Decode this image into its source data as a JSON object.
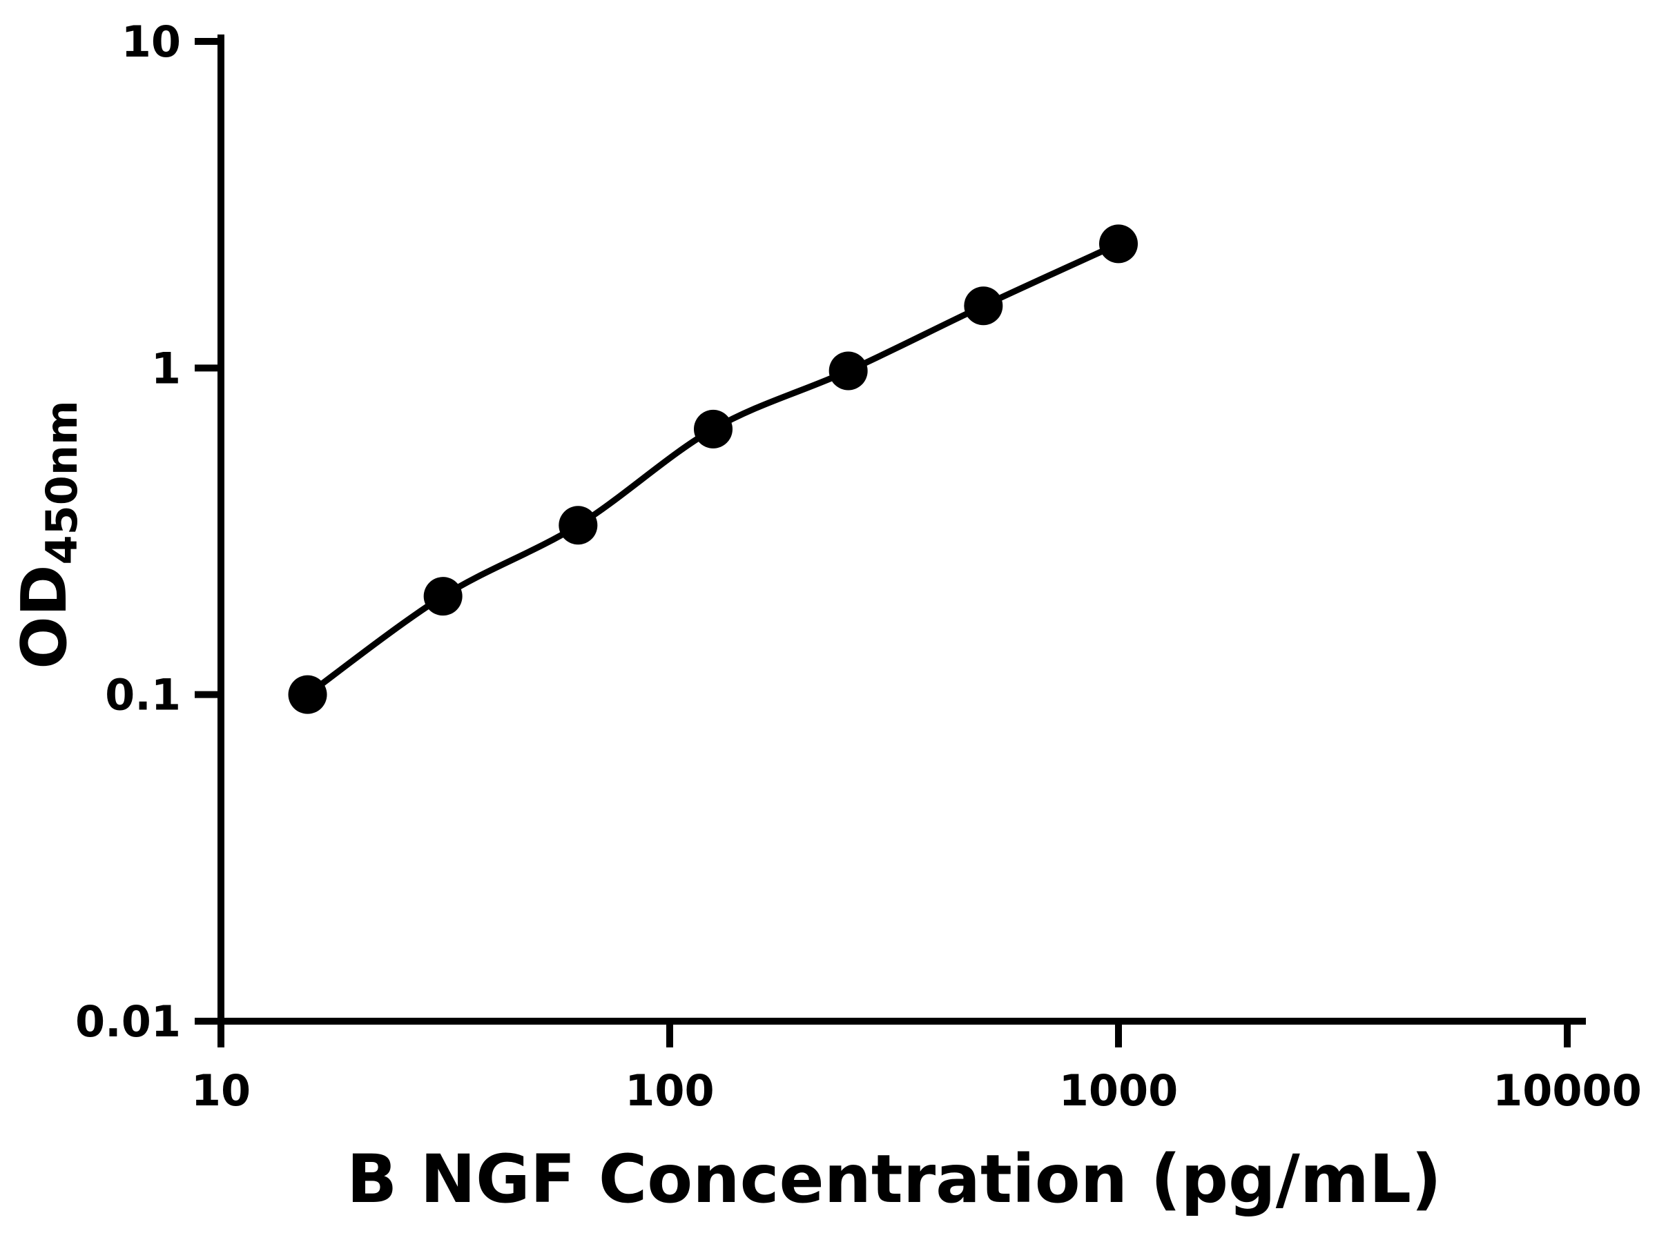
{
  "chart_data": {
    "type": "scatter",
    "title": "",
    "xlabel": "B NGF Concentration (pg/mL)",
    "ylabel": "OD",
    "ylabel_sub": "450nm",
    "x_scale": "log",
    "y_scale": "log",
    "xlim": [
      10,
      10000
    ],
    "ylim": [
      0.01,
      10
    ],
    "x": [
      15.6,
      31.25,
      62.5,
      125,
      250,
      500,
      1000
    ],
    "y": [
      0.1,
      0.2,
      0.33,
      0.65,
      0.98,
      1.55,
      2.4
    ],
    "x_ticks": [
      10,
      100,
      1000,
      10000
    ],
    "x_tick_labels": [
      "10",
      "100",
      "1000",
      "10000"
    ],
    "y_ticks": [
      0.01,
      0.1,
      1,
      10
    ],
    "y_tick_labels": [
      "0.01",
      "0.1",
      "1",
      "10"
    ],
    "grid": false,
    "legend": "none",
    "marker_color": "#000000",
    "line_color": "#000000",
    "marker_shape": "filled-circle",
    "curve_style": "smooth-through-points"
  }
}
